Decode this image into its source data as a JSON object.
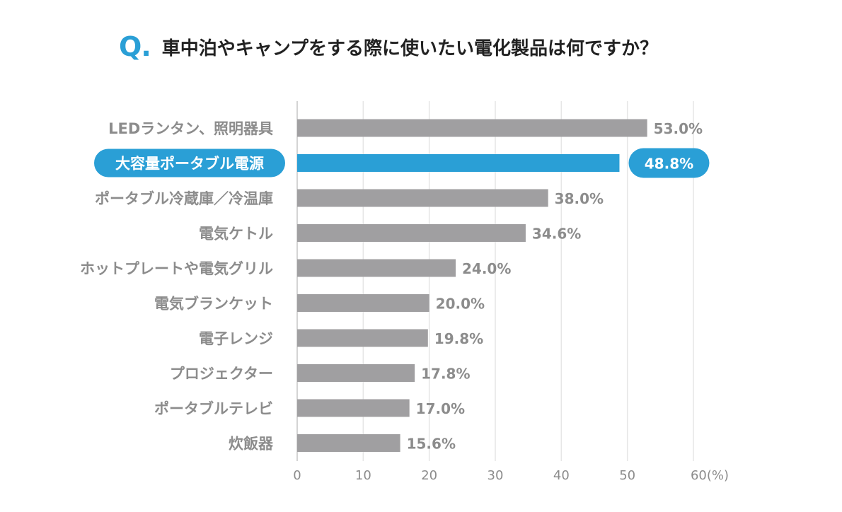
{
  "question": {
    "mark": "Q",
    "dot": ".",
    "text": "車中泊やキャンプをする際に使いたい電化製品は何ですか？"
  },
  "colors": {
    "bar": "#a09fa1",
    "highlight": "#2a9fd6",
    "label": "#8c8c8c",
    "grid": "#e6e6e6",
    "accent": "#2a9fd6"
  },
  "chart_data": {
    "type": "bar",
    "orientation": "horizontal",
    "categories": [
      "LEDランタン、照明器具",
      "大容量ポータブル電源",
      "ポータブル冷蔵庫／冷温庫",
      "電気ケトル",
      "ホットプレートや電気グリル",
      "電気ブランケット",
      "電子レンジ",
      "プロジェクター",
      "ポータブルテレビ",
      "炊飯器"
    ],
    "values": [
      53.0,
      48.8,
      38.0,
      34.6,
      24.0,
      20.0,
      19.8,
      17.8,
      17.0,
      15.6
    ],
    "value_labels": [
      "53.0%",
      "48.8%",
      "38.0%",
      "34.6%",
      "24.0%",
      "20.0%",
      "19.8%",
      "17.8%",
      "17.0%",
      "15.6%"
    ],
    "highlight_index": 1,
    "xlim": [
      0,
      60
    ],
    "xticks": [
      0,
      10,
      20,
      30,
      40,
      50,
      60
    ],
    "xtick_labels": [
      "0",
      "10",
      "20",
      "30",
      "40",
      "50",
      "60(%)"
    ],
    "grid": true,
    "title": "車中泊やキャンプをする際に使いたい電化製品は何ですか？"
  }
}
